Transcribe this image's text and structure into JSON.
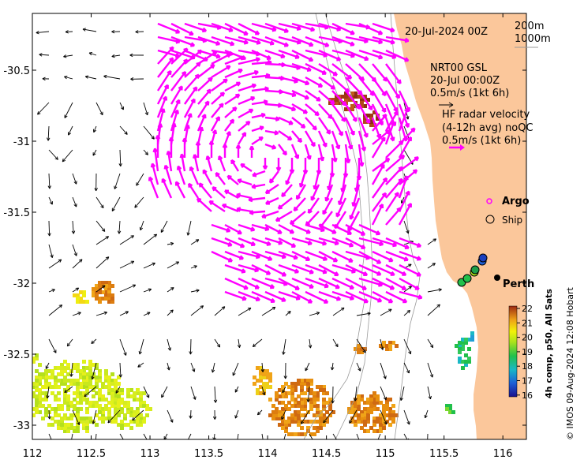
{
  "map": {
    "date_label": "20-Jul-2024 00Z",
    "depth_contours": [
      "200m",
      "1000m"
    ],
    "model_label": "NRT00 GSL",
    "model_time": "20-Jul 00:00Z",
    "model_scale": "0.5m/s (1kt 6h)",
    "radar_title": "HF radar velocity",
    "radar_sub": "(4-12h avg) noQC",
    "radar_scale": "0.5m/s (1kt 6h)",
    "argo_label": "Argo",
    "ship_label": "Ship",
    "city_label": "Perth",
    "credit": "© IMOS 09-Aug-2024 12:08 Hobart",
    "colorbar_title": "4h comp, p50, All Sats",
    "colorbar_ticks": [
      "22",
      "21",
      "20",
      "19",
      "18",
      "17",
      "16"
    ],
    "x_ticks": [
      "112",
      "112.5",
      "113",
      "113.5",
      "114",
      "114.5",
      "115",
      "115.5",
      "116"
    ],
    "y_ticks": [
      "-30.5",
      "-31",
      "-31.5",
      "-32",
      "-32.5",
      "-33"
    ]
  },
  "colors": {
    "land": "#fbc79b",
    "radar_vector": "#ff00ff",
    "model_vector": "#000000",
    "contour": "#999999"
  },
  "axes": {
    "x_range": [
      112,
      116.2
    ],
    "y_range": [
      -33.1,
      -30.1
    ]
  }
}
